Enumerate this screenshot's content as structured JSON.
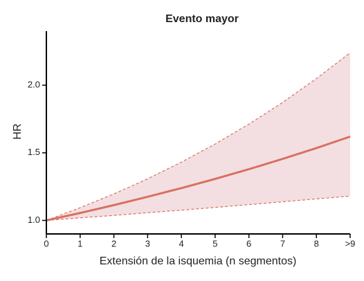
{
  "chart_data": {
    "type": "line",
    "title": "Evento mayor",
    "x_label": "Extensión de la isquemia (n  segmentos)",
    "y_label": "HR",
    "x": [
      0,
      1,
      2,
      3,
      4,
      5,
      6,
      7,
      8,
      9
    ],
    "values": [
      1.0,
      1.055,
      1.113,
      1.175,
      1.239,
      1.307,
      1.379,
      1.455,
      1.535,
      1.62
    ],
    "upper": [
      1.0,
      1.094,
      1.196,
      1.308,
      1.431,
      1.565,
      1.712,
      1.873,
      2.049,
      2.24
    ],
    "lower": [
      1.0,
      1.019,
      1.037,
      1.057,
      1.076,
      1.096,
      1.117,
      1.138,
      1.159,
      1.18
    ],
    "color": "#d9705f",
    "band_color": "#f3dfe1",
    "xlim": [
      0,
      9
    ],
    "xticks": [
      0,
      1,
      2,
      3,
      4,
      5,
      6,
      7,
      8,
      {
        "value": 9,
        "label": ">9"
      }
    ],
    "ylim": [
      0.9,
      2.4
    ],
    "yticks": [
      {
        "value": 1,
        "label": "1.0"
      },
      {
        "value": 1.5,
        "label": "1.5"
      },
      {
        "value": 2,
        "label": "2.0"
      }
    ]
  }
}
